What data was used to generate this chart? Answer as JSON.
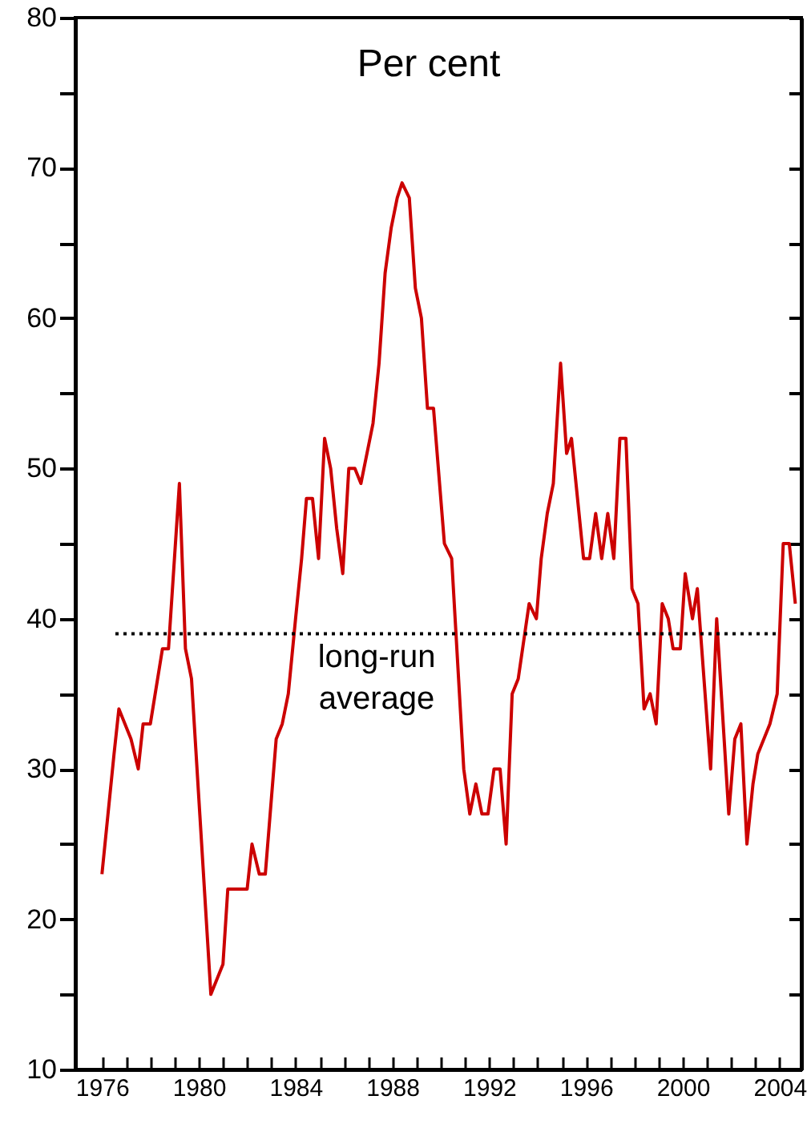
{
  "chart_data": {
    "type": "line",
    "ylabel": "Per cent",
    "x": [
      1976.0,
      1976.5,
      1976.7,
      1977.2,
      1977.5,
      1977.7,
      1978.0,
      1978.2,
      1978.5,
      1978.75,
      1979.2,
      1979.45,
      1979.7,
      1980.5,
      1981.0,
      1981.2,
      1982.0,
      1982.2,
      1982.5,
      1982.75,
      1983.2,
      1983.45,
      1983.7,
      1984.0,
      1984.25,
      1984.45,
      1984.7,
      1984.95,
      1985.2,
      1985.45,
      1985.7,
      1985.95,
      1986.2,
      1986.45,
      1986.7,
      1986.95,
      1987.2,
      1987.45,
      1987.7,
      1987.95,
      1988.2,
      1988.4,
      1988.7,
      1988.95,
      1989.2,
      1989.45,
      1989.7,
      1990.15,
      1990.45,
      1990.95,
      1991.2,
      1991.45,
      1991.7,
      1991.95,
      1992.2,
      1992.45,
      1992.7,
      1992.95,
      1993.2,
      1993.65,
      1993.95,
      1994.15,
      1994.4,
      1994.65,
      1994.95,
      1995.2,
      1995.4,
      1995.65,
      1995.9,
      1996.15,
      1996.4,
      1996.65,
      1996.9,
      1997.15,
      1997.4,
      1997.65,
      1997.9,
      1998.15,
      1998.4,
      1998.65,
      1998.9,
      1999.15,
      1999.4,
      1999.6,
      1999.9,
      2000.1,
      2000.4,
      2000.6,
      2001.15,
      2001.4,
      2001.9,
      2002.15,
      2002.4,
      2002.65,
      2002.9,
      2003.1,
      2003.6,
      2003.9,
      2004.15,
      2004.4,
      2004.65
    ],
    "series": [
      {
        "color": "#cc0000",
        "values": [
          23,
          31,
          34,
          32,
          30,
          33,
          33,
          35,
          38,
          38,
          49,
          38,
          36,
          15,
          17,
          22,
          22,
          25,
          23,
          23,
          32,
          33,
          35,
          40,
          44,
          48,
          48,
          44,
          52,
          50,
          46,
          43,
          50,
          50,
          49,
          51,
          53,
          57,
          63,
          66,
          68,
          69,
          68,
          62,
          60,
          54,
          54,
          45,
          44,
          30,
          27,
          29,
          27,
          27,
          30,
          30,
          25,
          35,
          36,
          41,
          40,
          44,
          47,
          49,
          57,
          51,
          52,
          48,
          44,
          44,
          47,
          44,
          47,
          44,
          52,
          52,
          42,
          41,
          34,
          35,
          33,
          41,
          40,
          38,
          38,
          43,
          40,
          42,
          30,
          40,
          27,
          32,
          33,
          25,
          29,
          31,
          33,
          35,
          45,
          45,
          41
        ]
      }
    ],
    "xlim": [
      1974.9,
      2004.9
    ],
    "xticks": [
      1976,
      {
        "value": 1977,
        "label": null
      },
      {
        "value": 1978,
        "label": null
      },
      {
        "value": 1979,
        "label": null
      },
      1980,
      {
        "value": 1981,
        "label": null
      },
      {
        "value": 1982,
        "label": null
      },
      {
        "value": 1983,
        "label": null
      },
      1984,
      {
        "value": 1985,
        "label": null
      },
      {
        "value": 1986,
        "label": null
      },
      {
        "value": 1987,
        "label": null
      },
      1988,
      {
        "value": 1989,
        "label": null
      },
      {
        "value": 1990,
        "label": null
      },
      {
        "value": 1991,
        "label": null
      },
      1992,
      {
        "value": 1993,
        "label": null
      },
      {
        "value": 1994,
        "label": null
      },
      {
        "value": 1995,
        "label": null
      },
      1996,
      {
        "value": 1997,
        "label": null
      },
      {
        "value": 1998,
        "label": null
      },
      {
        "value": 1999,
        "label": null
      },
      2000,
      {
        "value": 2001,
        "label": null
      },
      {
        "value": 2002,
        "label": null
      },
      {
        "value": 2003,
        "label": null
      },
      2004
    ],
    "ylim": [
      10,
      80
    ],
    "yticks": [
      10,
      {
        "value": 15,
        "label": null
      },
      20,
      {
        "value": 25,
        "label": null
      },
      30,
      {
        "value": 35,
        "label": null
      },
      40,
      {
        "value": 45,
        "label": null
      },
      50,
      {
        "value": 55,
        "label": null
      },
      60,
      {
        "value": 65,
        "label": null
      },
      70,
      {
        "value": 75,
        "label": null
      },
      80
    ],
    "ref_lines": [
      {
        "axis": "y",
        "value": 39,
        "label": "long-run average",
        "line_style": "dotted",
        "color": "#000000"
      }
    ],
    "grid": false,
    "marker": "none",
    "line_style": "solid"
  }
}
